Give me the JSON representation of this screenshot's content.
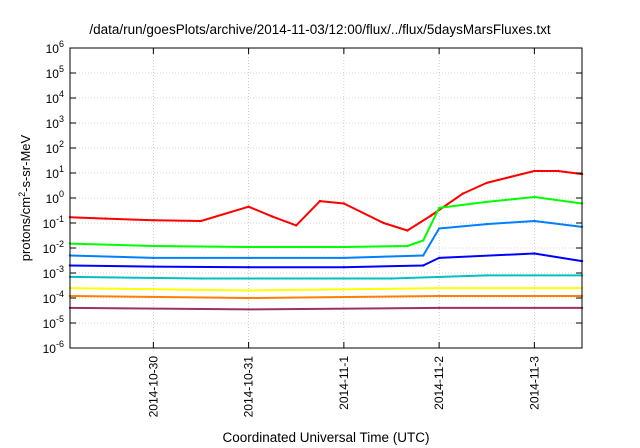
{
  "chart_data": {
    "type": "line",
    "title": "/data/run/goesPlots/archive/2014-11-03/12:00/flux/../flux/5daysMarsFluxes.txt",
    "xlabel": "Coordinated Universal Time (UTC)",
    "ylabel": {
      "base": "protons/cm",
      "sup": "2",
      "rest": "-s-sr-MeV"
    },
    "x_axis": {
      "type": "date",
      "range": [
        "2014-10-29T03:00",
        "2014-11-03T12:00"
      ],
      "ticks": [
        "2014-10-30",
        "2014-10-31",
        "2014-11-1",
        "2014-11-2",
        "2014-11-3"
      ]
    },
    "y_axis": {
      "scale": "log",
      "range": [
        1e-06,
        1000000.0
      ],
      "ticks": [
        {
          "base": "10",
          "exp": "-6"
        },
        {
          "base": "10",
          "exp": "-5"
        },
        {
          "base": "10",
          "exp": "-4"
        },
        {
          "base": "10",
          "exp": "-3"
        },
        {
          "base": "10",
          "exp": "-2"
        },
        {
          "base": "10",
          "exp": "-1"
        },
        {
          "base": "10",
          "exp": "0"
        },
        {
          "base": "10",
          "exp": "1"
        },
        {
          "base": "10",
          "exp": "2"
        },
        {
          "base": "10",
          "exp": "3"
        },
        {
          "base": "10",
          "exp": "4"
        },
        {
          "base": "10",
          "exp": "5"
        },
        {
          "base": "10",
          "exp": "6"
        }
      ]
    },
    "grid": true,
    "legend": "none",
    "series": [
      {
        "color": "#ff0000",
        "x": [
          "2014-10-29T03:00",
          "2014-10-29T12:00",
          "2014-10-30T00:00",
          "2014-10-30T12:00",
          "2014-10-31T00:00",
          "2014-10-31T06:00",
          "2014-10-31T12:00",
          "2014-10-31T18:00",
          "2014-11-01T00:00",
          "2014-11-01T10:00",
          "2014-11-01T16:00",
          "2014-11-01T22:00",
          "2014-11-02T06:00",
          "2014-11-02T12:00",
          "2014-11-02T18:00",
          "2014-11-03T00:00",
          "2014-11-03T06:00",
          "2014-11-03T12:00"
        ],
        "values": [
          0.17,
          0.15,
          0.13,
          0.12,
          0.45,
          0.18,
          0.08,
          0.75,
          0.6,
          0.1,
          0.05,
          0.2,
          1.5,
          4,
          7,
          12,
          12,
          9
        ]
      },
      {
        "color": "#00ff00",
        "x": [
          "2014-10-29T03:00",
          "2014-10-30T00:00",
          "2014-10-31T00:00",
          "2014-11-01T00:00",
          "2014-11-01T16:00",
          "2014-11-01T20:00",
          "2014-11-02T00:00",
          "2014-11-02T12:00",
          "2014-11-03T00:00",
          "2014-11-03T12:00"
        ],
        "values": [
          0.015,
          0.012,
          0.011,
          0.011,
          0.012,
          0.02,
          0.4,
          0.7,
          1.1,
          0.6
        ]
      },
      {
        "color": "#0080ff",
        "x": [
          "2014-10-29T03:00",
          "2014-10-30T00:00",
          "2014-10-31T00:00",
          "2014-11-01T00:00",
          "2014-11-01T20:00",
          "2014-11-02T00:00",
          "2014-11-02T12:00",
          "2014-11-03T00:00",
          "2014-11-03T12:00"
        ],
        "values": [
          0.005,
          0.004,
          0.004,
          0.004,
          0.005,
          0.06,
          0.09,
          0.12,
          0.07
        ]
      },
      {
        "color": "#0000ff",
        "x": [
          "2014-10-29T03:00",
          "2014-10-30T00:00",
          "2014-10-31T00:00",
          "2014-11-01T00:00",
          "2014-11-01T20:00",
          "2014-11-02T00:00",
          "2014-11-03T00:00",
          "2014-11-03T12:00"
        ],
        "values": [
          0.002,
          0.0018,
          0.0017,
          0.0017,
          0.002,
          0.004,
          0.006,
          0.003
        ]
      },
      {
        "color": "#00c0c0",
        "x": [
          "2014-10-29T03:00",
          "2014-10-30T12:00",
          "2014-11-01T12:00",
          "2014-11-02T12:00",
          "2014-11-03T12:00"
        ],
        "values": [
          0.0007,
          0.0006,
          0.0006,
          0.0008,
          0.0008
        ]
      },
      {
        "color": "#ffff00",
        "x": [
          "2014-10-29T03:00",
          "2014-10-31T00:00",
          "2014-11-02T00:00",
          "2014-11-03T12:00"
        ],
        "values": [
          0.00025,
          0.0002,
          0.00025,
          0.00025
        ]
      },
      {
        "color": "#ff8000",
        "x": [
          "2014-10-29T03:00",
          "2014-10-31T00:00",
          "2014-11-02T00:00",
          "2014-11-03T12:00"
        ],
        "values": [
          0.00012,
          0.0001,
          0.00012,
          0.00012
        ]
      },
      {
        "color": "#993366",
        "x": [
          "2014-10-29T03:00",
          "2014-10-31T00:00",
          "2014-11-02T00:00",
          "2014-11-03T12:00"
        ],
        "values": [
          4e-05,
          3.5e-05,
          4e-05,
          4e-05
        ]
      }
    ]
  }
}
